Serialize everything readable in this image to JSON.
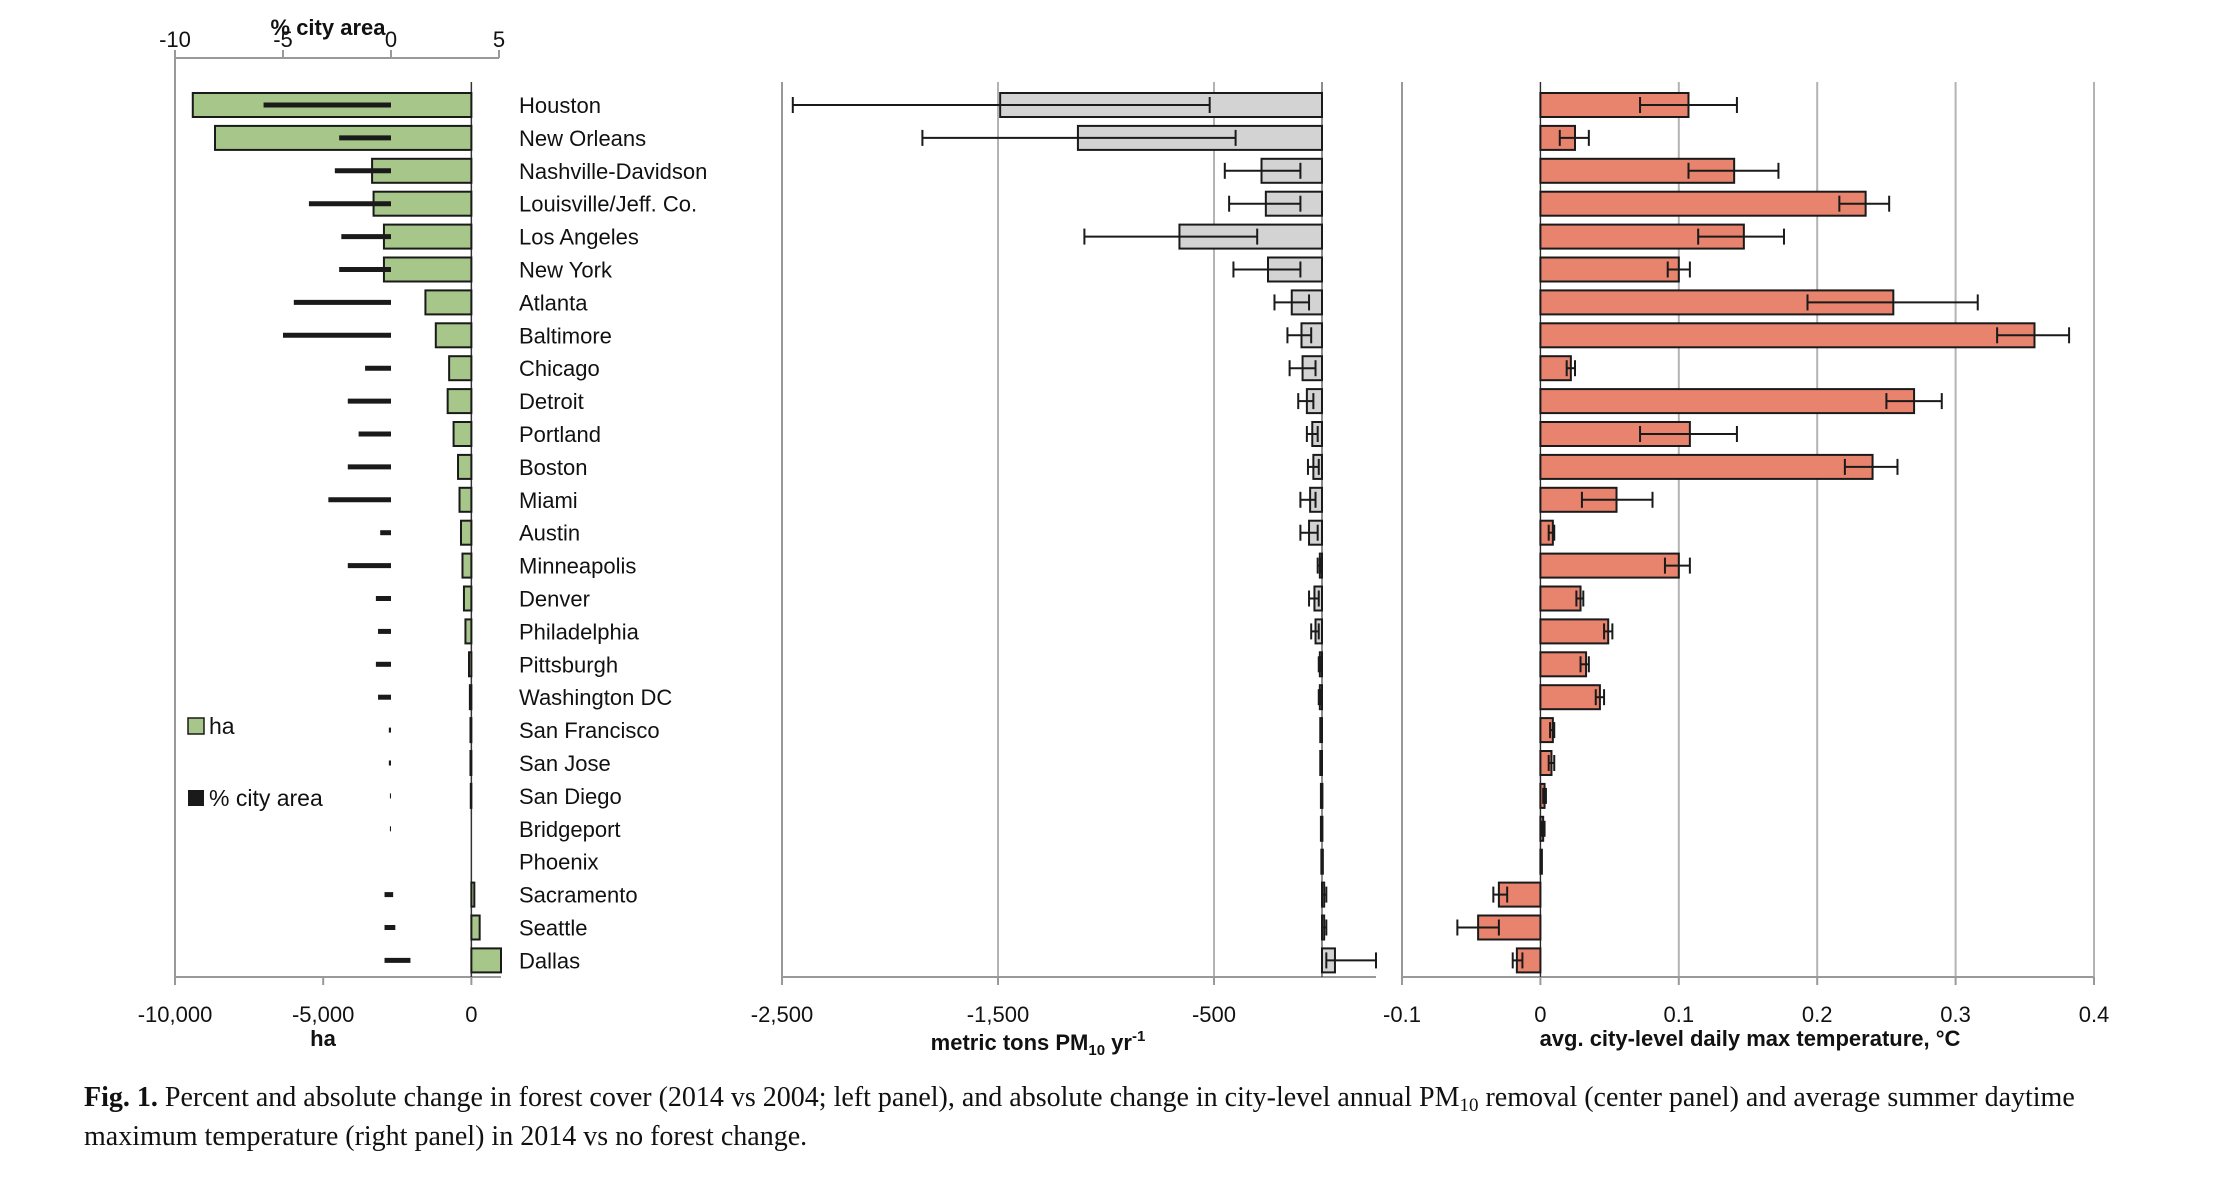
{
  "cities": [
    "Houston",
    "New Orleans",
    "Nashville-Davidson",
    "Louisville/Jeff. Co.",
    "Los Angeles",
    "New York",
    "Atlanta",
    "Baltimore",
    "Chicago",
    "Detroit",
    "Portland",
    "Boston",
    "Miami",
    "Austin",
    "Minneapolis",
    "Denver",
    "Philadelphia",
    "Pittsburgh",
    "Washington DC",
    "San Francisco",
    "San Jose",
    "San Diego",
    "Bridgeport",
    "Phoenix",
    "Sacramento",
    "Seattle",
    "Dallas"
  ],
  "chart_data": [
    {
      "type": "bar",
      "orientation": "horizontal",
      "panel": "left",
      "xlabel": "ha",
      "x_secondary_label": "% city area",
      "xlim": [
        -10000,
        1000
      ],
      "x_ticks": [
        -10000,
        -5000,
        0
      ],
      "x_tick_labels": [
        "-10,000",
        "-5,000",
        "0"
      ],
      "x_secondary_lim": [
        -10,
        5
      ],
      "x_secondary_ticks": [
        -10,
        -5,
        0,
        5
      ],
      "x_secondary_tick_labels": [
        "-10",
        "-5",
        "0",
        "5"
      ],
      "legend": [
        {
          "name": "ha",
          "color": "#a7c68a"
        },
        {
          "name": "% city area",
          "color": "#1a1a1a"
        }
      ],
      "legend_position": "bottom-left",
      "series": [
        {
          "name": "ha",
          "values": [
            -9400,
            -8650,
            -3350,
            -3300,
            -2950,
            -2950,
            -1550,
            -1200,
            -750,
            -800,
            -600,
            -450,
            -400,
            -350,
            -300,
            -250,
            -200,
            -80,
            -50,
            -30,
            -30,
            -20,
            0,
            0,
            100,
            280,
            1000
          ]
        },
        {
          "name": "% city area",
          "ranges": [
            [
              -5.9,
              0
            ],
            [
              -2.4,
              0
            ],
            [
              -2.6,
              0
            ],
            [
              -3.8,
              0
            ],
            [
              -2.3,
              0
            ],
            [
              -2.4,
              0
            ],
            [
              -4.5,
              0
            ],
            [
              -5.0,
              0
            ],
            [
              -1.2,
              0
            ],
            [
              -2.0,
              0
            ],
            [
              -1.5,
              0
            ],
            [
              -2.0,
              0
            ],
            [
              -2.9,
              0
            ],
            [
              -0.5,
              0
            ],
            [
              -2.0,
              0
            ],
            [
              -0.7,
              0
            ],
            [
              -0.6,
              0
            ],
            [
              -0.7,
              0
            ],
            [
              -0.6,
              0
            ],
            [
              -0.1,
              0
            ],
            [
              -0.1,
              0
            ],
            [
              -0.05,
              0
            ],
            [
              -0.05,
              0
            ],
            [
              0,
              0
            ],
            [
              -0.3,
              0.1
            ],
            [
              -0.3,
              0.2
            ],
            [
              -0.3,
              0.9
            ]
          ]
        }
      ]
    },
    {
      "type": "bar",
      "orientation": "horizontal",
      "panel": "center",
      "xlabel": "metric tons PM10 yr-1",
      "xlabel_main": "metric tons PM",
      "xlabel_sub": "10",
      "xlabel_tail": " yr",
      "xlabel_sup": "-1",
      "xlim": [
        -2500,
        250
      ],
      "x_ticks": [
        -2500,
        -1500,
        -500
      ],
      "x_tick_labels": [
        "-2,500",
        "-1,500",
        "-500"
      ],
      "grid": true,
      "bar_color": "#d3d3d3",
      "values": [
        -1490,
        -1130,
        -280,
        -260,
        -660,
        -250,
        -140,
        -95,
        -90,
        -70,
        -45,
        -40,
        -55,
        -60,
        -10,
        -35,
        -30,
        -10,
        -10,
        -8,
        -8,
        -5,
        -5,
        -3,
        10,
        10,
        60
      ],
      "error_low": [
        -2450,
        -1850,
        -450,
        -430,
        -1100,
        -410,
        -220,
        -160,
        -150,
        -110,
        -70,
        -65,
        -100,
        -100,
        -20,
        -60,
        -50,
        -15,
        -15,
        -12,
        -12,
        -8,
        -8,
        -5,
        0,
        0,
        20
      ],
      "error_high": [
        -520,
        -400,
        -100,
        -100,
        -300,
        -100,
        -60,
        -50,
        -30,
        -40,
        -20,
        -15,
        -30,
        -20,
        -5,
        -15,
        -15,
        -5,
        -5,
        -4,
        -4,
        -2,
        -2,
        -1,
        20,
        20,
        250
      ]
    },
    {
      "type": "bar",
      "orientation": "horizontal",
      "panel": "right",
      "xlabel": "avg. city-level daily max temperature, °C",
      "xlim": [
        -0.1,
        0.4
      ],
      "x_ticks": [
        -0.1,
        0,
        0.1,
        0.2,
        0.3,
        0.4
      ],
      "x_tick_labels": [
        "-0.1",
        "0",
        "0.1",
        "0.2",
        "0.3",
        "0.4"
      ],
      "grid": true,
      "bar_color": "#e8836d",
      "values": [
        0.107,
        0.025,
        0.14,
        0.235,
        0.147,
        0.1,
        0.255,
        0.357,
        0.022,
        0.27,
        0.108,
        0.24,
        0.055,
        0.009,
        0.1,
        0.029,
        0.049,
        0.033,
        0.043,
        0.009,
        0.008,
        0.003,
        0.002,
        0.0005,
        -0.03,
        -0.045,
        -0.017
      ],
      "error_low": [
        0.072,
        0.014,
        0.107,
        0.216,
        0.114,
        0.092,
        0.193,
        0.33,
        0.019,
        0.25,
        0.072,
        0.22,
        0.03,
        0.006,
        0.09,
        0.026,
        0.046,
        0.029,
        0.04,
        0.007,
        0.006,
        0.002,
        0.001,
        0,
        -0.034,
        -0.06,
        -0.02
      ],
      "error_high": [
        0.142,
        0.035,
        0.172,
        0.252,
        0.176,
        0.108,
        0.316,
        0.382,
        0.025,
        0.29,
        0.142,
        0.258,
        0.081,
        0.01,
        0.108,
        0.031,
        0.052,
        0.035,
        0.046,
        0.01,
        0.01,
        0.004,
        0.003,
        0.001,
        -0.024,
        -0.03,
        -0.013
      ]
    }
  ],
  "caption": {
    "label": "Fig. 1.",
    "text_1": " Percent and absolute change in forest cover (2014 vs 2004; left panel), and absolute change in city-level annual PM",
    "sub": "10",
    "text_2": " removal (center panel) and average summer daytime maximum temperature (right panel) in 2014 vs no forest change."
  }
}
